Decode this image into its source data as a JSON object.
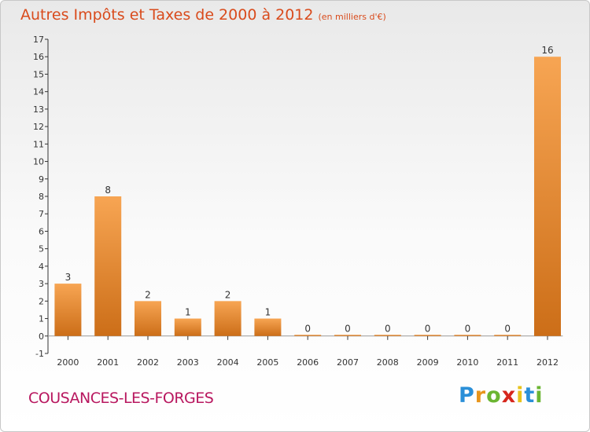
{
  "header": {
    "title": "Autres Impôts et Taxes de 2000 à 2012",
    "unit": "(en milliers d'€)"
  },
  "footer": {
    "commune": "COUSANCES-LES-FORGES",
    "logo": [
      "P",
      "r",
      "o",
      "x",
      "i",
      "t",
      "i"
    ]
  },
  "colors": {
    "bar_top": "#f7a553",
    "bar_bottom": "#cc6e18",
    "title": "#d94b1c",
    "commune": "#b8175f"
  },
  "chart_data": {
    "type": "bar",
    "title": "Autres Impôts et Taxes de 2000 à 2012",
    "subtitle": "(en milliers d'€)",
    "categories": [
      "2000",
      "2001",
      "2002",
      "2003",
      "2004",
      "2005",
      "2006",
      "2007",
      "2008",
      "2009",
      "2010",
      "2011",
      "2012"
    ],
    "values": [
      3,
      8,
      2,
      1,
      2,
      1,
      0,
      0,
      0,
      0,
      0,
      0,
      16
    ],
    "data_labels": [
      "3",
      "8",
      "2",
      "1",
      "2",
      "1",
      "0",
      "0",
      "0",
      "0",
      "0",
      "0",
      "16"
    ],
    "ylim": [
      -1,
      17
    ],
    "yticks": [
      -1,
      0,
      1,
      2,
      3,
      4,
      5,
      6,
      7,
      8,
      9,
      10,
      11,
      12,
      13,
      14,
      15,
      16,
      17
    ],
    "grid": false,
    "legend": "none"
  }
}
